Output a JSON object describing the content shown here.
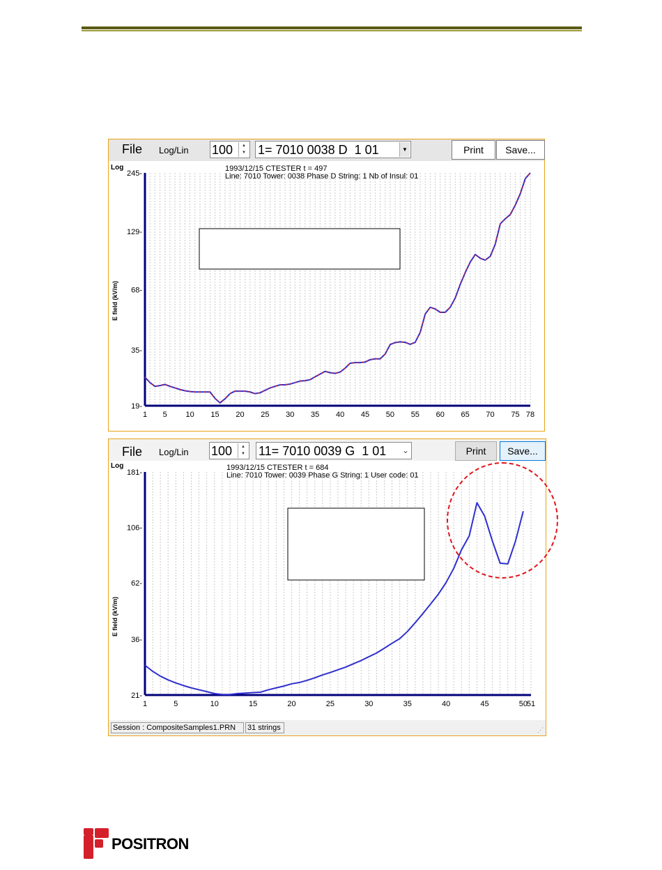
{
  "colors": {
    "accent_border": "#e8a317",
    "axis": "#00007a",
    "series_blue": "#2f2fd0",
    "series_red": "#d42020",
    "highlight_circle": "#e0141c",
    "logo_red": "#d4202a"
  },
  "window1": {
    "file_label": "File",
    "loglin_label": "Log/Lin",
    "spin_value": "100",
    "combo_value": "1= 7010 0038 D  1 01",
    "print_label": "Print",
    "save_label": "Save...",
    "scale_label": "Log",
    "info_line1": "1993/12/15 CTESTER    t = 497",
    "info_line2": "Line: 7010 Tower: 0038 Phase D String:  1 Nb of Insul: 01",
    "ylabel": "E field (kV/m)"
  },
  "window2": {
    "file_label": "File",
    "loglin_label": "Log/Lin",
    "spin_value": "100",
    "combo_value": "11= 7010 0039 G  1 01",
    "print_label": "Print",
    "save_label": "Save...",
    "scale_label": "Log",
    "info_line1": "1993/12/15 CTESTER    t = 684",
    "info_line2": "Line: 7010 Tower: 0039 Phase G String:  1 User code: 01",
    "ylabel": "E field (kV/m)",
    "status_session": "Session : CompositeSamples1.PRN",
    "status_strings": "31 strings"
  },
  "logo": {
    "name": "POSITRON"
  },
  "chart_data": [
    {
      "type": "line",
      "yscale": "log",
      "ylim": [
        19,
        245
      ],
      "xlim": [
        1,
        78
      ],
      "ytick_labels": [
        "245",
        "129",
        "68",
        "35",
        "19"
      ],
      "ytick_values": [
        245,
        129,
        68,
        35,
        19
      ],
      "xtick_labels": [
        "1",
        "5",
        "10",
        "15",
        "20",
        "25",
        "30",
        "35",
        "40",
        "45",
        "50",
        "55",
        "60",
        "65",
        "70",
        "75",
        "78"
      ],
      "xtick_values": [
        1,
        5,
        10,
        15,
        20,
        25,
        30,
        35,
        40,
        45,
        50,
        55,
        60,
        65,
        70,
        75,
        78
      ],
      "grid": true,
      "series": [
        {
          "x": [
            1,
            2,
            3,
            4,
            5,
            6,
            7,
            8,
            9,
            10,
            11,
            12,
            13,
            14,
            15,
            16,
            17,
            18,
            19,
            20,
            21,
            22,
            23,
            24,
            25,
            26,
            27,
            28,
            29,
            30,
            31,
            32,
            33,
            34,
            35,
            36,
            37,
            38,
            39,
            40,
            41,
            42,
            43,
            44,
            45,
            46,
            47,
            48,
            49,
            50,
            51,
            52,
            53,
            54,
            55,
            56,
            57,
            58,
            59,
            60,
            61,
            62,
            63,
            64,
            65,
            66,
            67,
            68,
            69,
            70,
            71,
            72,
            73,
            74,
            75,
            76,
            77,
            78
          ],
          "y": [
            26,
            24.5,
            23.5,
            23.7,
            24,
            23.5,
            23.1,
            22.7,
            22.4,
            22.2,
            22.1,
            22.1,
            22.1,
            22.1,
            20.6,
            19.6,
            20.5,
            21.7,
            22.3,
            22.3,
            22.3,
            22.1,
            21.7,
            21.9,
            22.5,
            23.1,
            23.5,
            23.9,
            23.9,
            24.1,
            24.5,
            24.9,
            25,
            25.3,
            26.1,
            26.9,
            27.7,
            27.3,
            27.1,
            27.5,
            28.7,
            30.3,
            30.5,
            30.5,
            30.7,
            31.5,
            31.8,
            31.8,
            33.5,
            37.2,
            38,
            38.3,
            38.1,
            37.3,
            38.1,
            42.5,
            52,
            56,
            55,
            53,
            53,
            56,
            62,
            72,
            82,
            92,
            100,
            96,
            94,
            98,
            112,
            140,
            148,
            155,
            172,
            195,
            230,
            245
          ]
        }
      ]
    },
    {
      "type": "line",
      "yscale": "log",
      "ylim": [
        21,
        181
      ],
      "xlim": [
        1,
        51
      ],
      "ytick_labels": [
        "181",
        "106",
        "62",
        "36",
        "21"
      ],
      "ytick_values": [
        181,
        106,
        62,
        36,
        21
      ],
      "xtick_labels": [
        "1",
        "5",
        "10",
        "15",
        "20",
        "25",
        "30",
        "35",
        "40",
        "45",
        "50",
        "51"
      ],
      "xtick_values": [
        1,
        5,
        10,
        15,
        20,
        25,
        30,
        35,
        40,
        45,
        50,
        51
      ],
      "grid": true,
      "series": [
        {
          "x": [
            1,
            2,
            3,
            4,
            5,
            6,
            7,
            8,
            9,
            10,
            11,
            12,
            13,
            14,
            15,
            16,
            17,
            18,
            19,
            20,
            21,
            22,
            23,
            24,
            25,
            26,
            27,
            28,
            29,
            30,
            31,
            32,
            33,
            34,
            35,
            36,
            37,
            38,
            39,
            40,
            41,
            42,
            43,
            44,
            45,
            46,
            47,
            48,
            49,
            50
          ],
          "y": [
            28,
            26.4,
            25.2,
            24.3,
            23.6,
            23,
            22.5,
            22.1,
            21.7,
            21.3,
            21.1,
            21.1,
            21.3,
            21.4,
            21.5,
            21.6,
            22.1,
            22.5,
            22.9,
            23.4,
            23.7,
            24.2,
            24.8,
            25.5,
            26.1,
            26.8,
            27.5,
            28.4,
            29.3,
            30.4,
            31.5,
            33,
            34.6,
            36.2,
            38.8,
            42.2,
            46.1,
            50.6,
            55.6,
            62.2,
            71.4,
            85.4,
            97.6,
            134.5,
            118,
            92.9,
            75,
            74.5,
            93,
            124
          ]
        }
      ]
    }
  ]
}
